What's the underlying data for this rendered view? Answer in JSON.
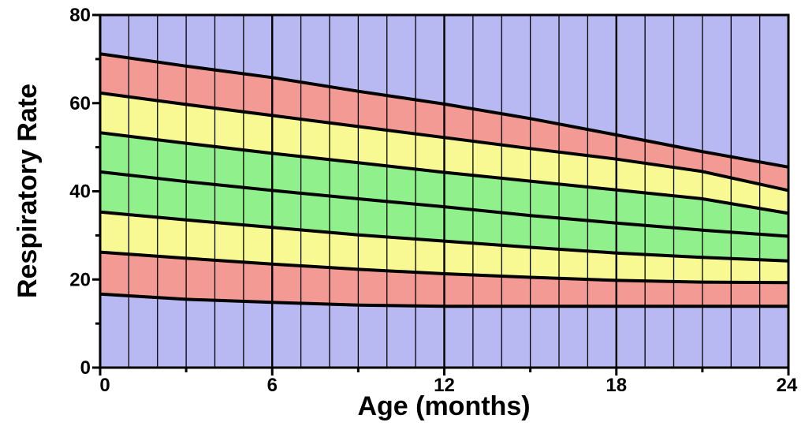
{
  "chart_data": {
    "type": "area",
    "title": "",
    "xlabel": "Age (months)",
    "ylabel": "Respiratory Rate",
    "xlim": [
      0,
      24
    ],
    "ylim": [
      0,
      80
    ],
    "x_ticks": [
      0,
      6,
      12,
      18,
      24
    ],
    "y_ticks": [
      0,
      20,
      40,
      60,
      80
    ],
    "grid": true,
    "x": [
      0,
      3,
      6,
      9,
      12,
      15,
      18,
      21,
      24
    ],
    "series": [
      {
        "values": [
          16.7,
          15.5,
          14.8,
          14.2,
          13.9,
          13.9,
          13.9,
          13.9,
          13.9
        ]
      },
      {
        "values": [
          26.2,
          24.8,
          23.5,
          22.3,
          21.3,
          20.5,
          19.8,
          19.4,
          19.3
        ]
      },
      {
        "values": [
          35.3,
          33.5,
          31.8,
          30.1,
          28.7,
          27.3,
          26.0,
          25.0,
          24.2
        ]
      },
      {
        "values": [
          44.4,
          42.2,
          40.2,
          38.3,
          36.5,
          34.5,
          32.8,
          31.2,
          29.8
        ]
      },
      {
        "values": [
          53.3,
          50.9,
          48.6,
          46.5,
          44.3,
          42.3,
          40.3,
          38.3,
          35.0
        ]
      },
      {
        "values": [
          62.3,
          59.7,
          57.2,
          54.7,
          52.2,
          49.7,
          47.3,
          44.5,
          40.2
        ]
      },
      {
        "values": [
          71.2,
          68.4,
          65.8,
          62.7,
          59.8,
          56.5,
          52.8,
          49.0,
          45.5
        ]
      }
    ],
    "band_colors": {
      "outside": "#b8b9f3",
      "outer": "#f29a93",
      "middle": "#f9f993",
      "inner": "#8ff08c"
    }
  }
}
